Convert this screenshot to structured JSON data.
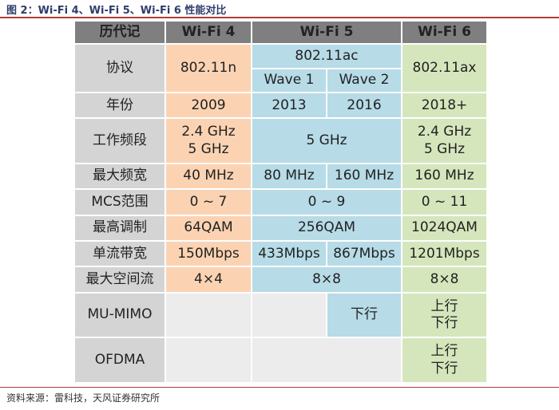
{
  "title": "图 2：Wi-Fi 4、Wi-Fi 5、Wi-Fi 6 性能对比",
  "source": "资料来源：雷科技，天风证券研究所",
  "colors": {
    "header": "#7f7f7f",
    "label": "#d4d4d4",
    "wifi4": "#fbd3b3",
    "wifi5": "#b7dbe7",
    "wifi6": "#d5e6bc",
    "blank": "#ececec",
    "title_rule": "#b33a3a"
  },
  "table": {
    "headers": {
      "history": "历代记",
      "wifi4": "Wi-Fi 4",
      "wifi5": "Wi-Fi 5",
      "wifi6": "Wi-Fi 6"
    },
    "protocol": {
      "label": "协议",
      "wifi4": "802.11n",
      "wifi5": "802.11ac",
      "wave1": "Wave 1",
      "wave2": "Wave 2",
      "wifi6": "802.11ax"
    },
    "year": {
      "label": "年份",
      "wifi4": "2009",
      "wave1": "2013",
      "wave2": "2016",
      "wifi6": "2018+"
    },
    "band": {
      "label": "工作频段",
      "wifi4": [
        "2.4 GHz",
        "5 GHz"
      ],
      "wifi5": "5 GHz",
      "wifi6": [
        "2.4 GHz",
        "5 GHz"
      ]
    },
    "bandwidth": {
      "label": "最大频宽",
      "wifi4": "40 MHz",
      "wave1": "80 MHz",
      "wave2": "160 MHz",
      "wifi6": "160 MHz"
    },
    "mcs": {
      "label": "MCS范围",
      "wifi4": "0 ~ 7",
      "wifi5": "0 ~ 9",
      "wifi6": "0 ~ 11"
    },
    "modulation": {
      "label": "最高调制",
      "wifi4": "64QAM",
      "wifi5": "256QAM",
      "wifi6": "1024QAM"
    },
    "rate": {
      "label": "单流带宽",
      "wifi4": "150Mbps",
      "wave1": "433Mbps",
      "wave2": "867Mbps",
      "wifi6": "1201Mbps"
    },
    "streams": {
      "label": "最大空间流",
      "wifi4": "4×4",
      "wifi5": "8×8",
      "wifi6": "8×8"
    },
    "mumimo": {
      "label": "MU-MIMO",
      "wave2": "下行",
      "wifi6": [
        "上行",
        "下行"
      ]
    },
    "ofdma": {
      "label": "OFDMA",
      "wifi6": [
        "上行",
        "下行"
      ]
    }
  }
}
